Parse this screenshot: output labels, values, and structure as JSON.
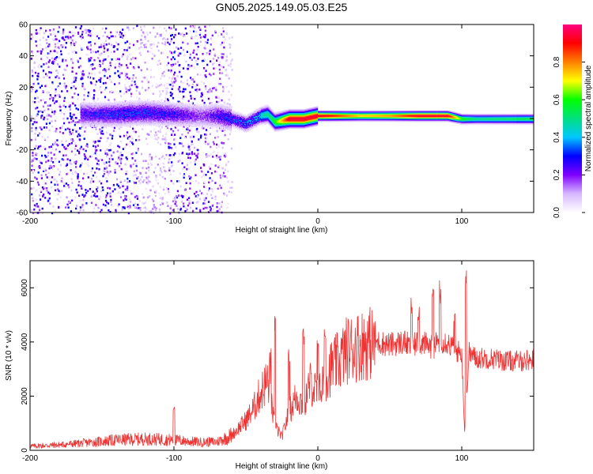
{
  "chart_data": [
    {
      "type": "heatmap",
      "title": "GN05.2025.149.05.03.E25",
      "xlabel": "Height of straight line (km)",
      "ylabel": "Frequency (Hz)",
      "xlim": [
        -200,
        150
      ],
      "ylim": [
        -60,
        60
      ],
      "xticks": [
        -200,
        -100,
        0,
        100
      ],
      "yticks": [
        -60,
        -40,
        -20,
        0,
        20,
        40,
        60
      ],
      "colorbar": {
        "label": "Normalized spectral amplitude",
        "range": [
          0,
          1
        ],
        "ticks": [
          "0.0",
          "0.2",
          "0.4",
          "0.6",
          "0.8"
        ],
        "tick_values": [
          0,
          0.2,
          0.4,
          0.6,
          0.8
        ],
        "colormap": [
          "#ffffff",
          "#d6b8ff",
          "#8000ff",
          "#0000ff",
          "#00c8ff",
          "#00e080",
          "#00ff00",
          "#ffff00",
          "#ff8000",
          "#ff0000",
          "#ff0080"
        ]
      },
      "ridge": {
        "description_points_x": [
          -160,
          -140,
          -120,
          -100,
          -80,
          -70,
          -60,
          -50,
          -40,
          -35,
          -30,
          -20,
          -10,
          0,
          10,
          30,
          50,
          70,
          90,
          100,
          110,
          150
        ],
        "center_hz": [
          3,
          3,
          4,
          3,
          2,
          2,
          0,
          -3,
          2,
          3,
          -2,
          0,
          0,
          2,
          2,
          2,
          2,
          2,
          2,
          0,
          0,
          0
        ],
        "peak_amplitude": [
          0.3,
          0.35,
          0.35,
          0.3,
          0.2,
          0.3,
          0.35,
          0.4,
          0.45,
          0.5,
          0.6,
          0.95,
          0.95,
          0.95,
          0.9,
          0.75,
          0.8,
          0.95,
          0.95,
          0.6,
          0.5,
          0.55
        ]
      }
    },
    {
      "type": "line",
      "xlabel": "Height of straight line (km)",
      "ylabel": "SNR (10 * v/v)",
      "xlim": [
        -200,
        150
      ],
      "ylim": [
        0,
        7000
      ],
      "xticks": [
        -200,
        -100,
        0,
        100
      ],
      "yticks": [
        0,
        2000,
        4000,
        6000
      ],
      "color": "#ee3333",
      "x": [
        -200,
        -180,
        -160,
        -140,
        -120,
        -100,
        -90,
        -80,
        -70,
        -60,
        -50,
        -45,
        -40,
        -35,
        -30,
        -25,
        -20,
        -15,
        -10,
        -5,
        0,
        5,
        10,
        15,
        20,
        30,
        40,
        50,
        60,
        65,
        70,
        75,
        80,
        85,
        90,
        95,
        100,
        102,
        105,
        110,
        120,
        130,
        140,
        150
      ],
      "y": [
        150,
        200,
        280,
        380,
        420,
        380,
        330,
        300,
        320,
        550,
        1100,
        1500,
        2100,
        2600,
        900,
        500,
        1400,
        2000,
        1700,
        2500,
        2000,
        2700,
        3100,
        3300,
        3700,
        3900,
        4000,
        3900,
        4000,
        3800,
        4000,
        3900,
        3800,
        4100,
        4000,
        3700,
        3600,
        700,
        3600,
        3400,
        3400,
        3300,
        3300,
        3350
      ],
      "spikes": [
        {
          "x": -100,
          "y": 1700
        },
        {
          "x": -33,
          "y": 3800
        },
        {
          "x": -30,
          "y": 5100
        },
        {
          "x": -20,
          "y": 3800
        },
        {
          "x": -10,
          "y": 4500
        },
        {
          "x": 0,
          "y": 4400
        },
        {
          "x": 5,
          "y": 4600
        },
        {
          "x": 65,
          "y": 5700
        },
        {
          "x": 70,
          "y": 5600
        },
        {
          "x": 80,
          "y": 6300
        },
        {
          "x": 85,
          "y": 6300
        },
        {
          "x": 95,
          "y": 5300
        },
        {
          "x": 103,
          "y": 6800
        }
      ]
    }
  ]
}
